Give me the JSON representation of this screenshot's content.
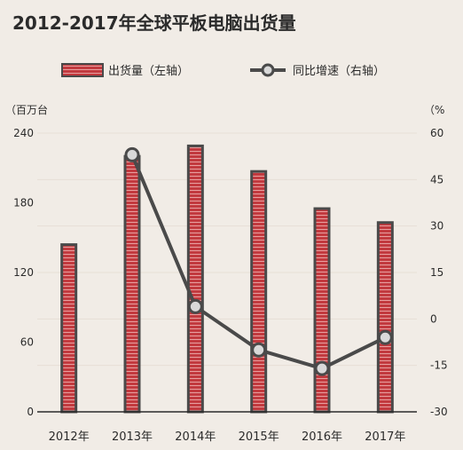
{
  "header": {
    "title": "2012-2017年全球平板电脑出货量"
  },
  "chart_data": {
    "type": "bar",
    "title": "2012-2017年全球平板电脑出货量",
    "categories": [
      "2012年",
      "2013年",
      "2014年",
      "2015年",
      "2016年",
      "2017年"
    ],
    "series": [
      {
        "name": "出货量（左轴）",
        "type": "bar",
        "axis": "left",
        "values": [
          144,
          220,
          229,
          207,
          175,
          163
        ]
      },
      {
        "name": "同比增速（右轴）",
        "type": "line",
        "axis": "right",
        "values": [
          null,
          53,
          4,
          -10,
          -16,
          -6
        ]
      }
    ],
    "y_left": {
      "label": "（百万台",
      "ticks": [
        "0",
        "60",
        "120",
        "180",
        "240"
      ],
      "range": [
        0,
        240
      ]
    },
    "y_right": {
      "label": "（%",
      "ticks": [
        "-30",
        "-15",
        "0",
        "15",
        "30",
        "45",
        "60"
      ],
      "range": [
        -30,
        60
      ]
    },
    "legend_position": "top",
    "grid": true,
    "colors": {
      "bar_fill": "#c23a3f",
      "bar_stripe": "#e89a9a",
      "bar_border": "#4a4a4a",
      "line": "#4a4a4a",
      "marker_fill": "#d9d9d9",
      "grid": "#e6dfd6",
      "background": "#f1ece6"
    }
  }
}
